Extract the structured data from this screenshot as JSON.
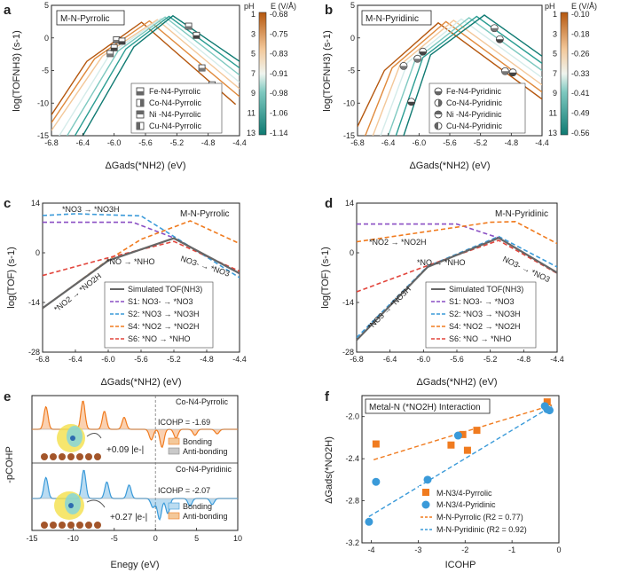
{
  "panels": {
    "a": {
      "letter": "a",
      "box_title": "M-N-Pyrrolic",
      "xlabel": "ΔGads(*NH2) (eV)",
      "ylabel": "log(TOFNH3) (s-1)",
      "xticks": [
        "-6.8",
        "-6.4",
        "-6.0",
        "-5.6",
        "-5.2",
        "-4.8",
        "-4.4"
      ],
      "yticks": [
        "5",
        "0",
        "-5",
        "-10",
        "-15"
      ],
      "legend": [
        "Fe-N4-Pyrrolic",
        "Co-N4-Pyrrolic",
        "Ni -N4-Pyrrolic",
        "Cu-N4-Pyrrolic"
      ],
      "colorbar": {
        "title_left": "pH",
        "title_right": "E (V/Å)",
        "ph_ticks": [
          "1",
          "3",
          "5",
          "7",
          "9",
          "11",
          "13"
        ],
        "e_ticks": [
          "-0.68",
          "-0.75",
          "-0.83",
          "-0.91",
          "-0.98",
          "-1.06",
          "-1.14"
        ]
      }
    },
    "b": {
      "letter": "b",
      "box_title": "M-N-Pyridinic",
      "xlabel": "ΔGads(*NH2) (eV)",
      "ylabel": "log(TOFNH3) (s-1)",
      "xticks": [
        "-6.8",
        "-6.4",
        "-6.0",
        "-5.6",
        "-5.2",
        "-4.8",
        "-4.4"
      ],
      "yticks": [
        "5",
        "0",
        "-5",
        "-10",
        "-15"
      ],
      "legend": [
        "Fe-N4-Pyridinic",
        "Co-N4-Pyridinic",
        "Ni -N4-Pyridinic",
        "Cu-N4-Pyridinic"
      ],
      "colorbar": {
        "title_left": "pH",
        "title_right": "E (V/Å)",
        "ph_ticks": [
          "1",
          "3",
          "5",
          "7",
          "9",
          "11",
          "13"
        ],
        "e_ticks": [
          "-0.10",
          "-0.18",
          "-0.26",
          "-0.33",
          "-0.41",
          "-0.49",
          "-0.56"
        ]
      }
    },
    "c": {
      "letter": "c",
      "box_title": "M-N-Pyrrolic",
      "xlabel": "ΔGads(*NH2) (eV)",
      "ylabel": "log(TOF) (s-1)",
      "xticks": [
        "-6.8",
        "-6.4",
        "-6.0",
        "-5.6",
        "-5.2",
        "-4.8",
        "-4.4"
      ],
      "yticks": [
        "14",
        "0",
        "-14",
        "-28"
      ],
      "annotations": [
        "*NO3 → *NO3H",
        "*NO → *NHO",
        "NO3- → *NO3",
        "*NO2 → *NO2H"
      ],
      "legend": [
        "Simulated TOF(NH3)",
        "S1: NO3- → *NO3",
        "S2: *NO3 → *NO3H",
        "S4: *NO2 → *NO2H",
        "S6: *NO → *NHO"
      ]
    },
    "d": {
      "letter": "d",
      "box_title": "M-N-Pyridinic",
      "xlabel": "ΔGads(*NH2) (eV)",
      "ylabel": "log(TOF) (s-1)",
      "xticks": [
        "-6.8",
        "-6.4",
        "-6.0",
        "-5.6",
        "-5.2",
        "-4.8",
        "-4.4"
      ],
      "yticks": [
        "14",
        "0",
        "-14",
        "-28"
      ],
      "annotations": [
        "*NO2 → *NO2H",
        "*NO → *NHO",
        "NO3- → *NO3",
        "*NO3 → *NO3H"
      ],
      "legend": [
        "Simulated TOF(NH3)",
        "S1: NO3- → *NO3",
        "S2: *NO3 → *NO3H",
        "S4: *NO2 → *NO2H",
        "S6: *NO → *NHO"
      ]
    },
    "e": {
      "letter": "e",
      "xlabel": "Enegy (eV)",
      "ylabel": "-pCOHP",
      "xticks": [
        "-15",
        "-10",
        "-5",
        "0",
        "5",
        "10"
      ],
      "top": {
        "title": "Co-N4-Pyrrolic",
        "icohp": "ICOHP = -1.69",
        "charge": "+0.09 |e-|",
        "legend": [
          "Bonding",
          "Anti-bonding"
        ]
      },
      "bottom": {
        "title": "Co-N4-Pyridinic",
        "icohp": "ICOHP = -2.07",
        "charge": "+0.27 |e-|",
        "legend": [
          "Bonding",
          "Anti-bonding"
        ]
      }
    },
    "f": {
      "letter": "f",
      "box_title": "Metal-N (*NO2H) Interaction",
      "xlabel": "ICOHP",
      "ylabel": "ΔGads(*NO2H)",
      "xticks": [
        "-4",
        "-3",
        "-2",
        "-1",
        "0"
      ],
      "yticks": [
        "-2.0",
        "-2.4",
        "-2.8",
        "-3.2"
      ],
      "legend": [
        "M-N3/4-Pyrrolic",
        "M-N3/4-Pyridinic",
        "M-N-Pyrrolic (R2 = 0.77)",
        "M-N-Pyridinic (R2 = 0.92)"
      ]
    }
  },
  "colors": {
    "orange": "#f07b1f",
    "blue": "#3a9ad9",
    "purple": "#8a4fc4",
    "red": "#e2453c",
    "grey": "#666666",
    "pink": "#d9405c",
    "teal": "#0f7a72",
    "brown": "#b5570e"
  },
  "chart_data": [
    {
      "type": "line",
      "panel": "a",
      "xlim": [
        -6.8,
        -4.4
      ],
      "ylim": [
        -15,
        5
      ],
      "series": [
        {
          "name": "pH 1",
          "color": "#b5570e",
          "x": [
            -6.8,
            -6.35,
            -5.65,
            -4.45
          ],
          "y": [
            -11.8,
            -3.6,
            2.4,
            -10.2
          ]
        },
        {
          "name": "pH 3",
          "color": "#e08a3c",
          "x": [
            -6.8,
            -6.25,
            -5.55,
            -4.4
          ],
          "y": [
            -13.0,
            -3.2,
            2.6,
            -9.0
          ]
        },
        {
          "name": "pH 5",
          "color": "#f3c89a",
          "x": [
            -6.8,
            -6.15,
            -5.45,
            -4.4
          ],
          "y": [
            -14.2,
            -2.8,
            2.8,
            -7.8
          ]
        },
        {
          "name": "pH 7",
          "color": "#d5ecea",
          "x": [
            -6.7,
            -6.05,
            -5.4,
            -4.4
          ],
          "y": [
            -15.0,
            -2.4,
            3.0,
            -6.8
          ]
        },
        {
          "name": "pH 9",
          "color": "#7ec9c0",
          "x": [
            -6.6,
            -5.95,
            -5.35,
            -4.4
          ],
          "y": [
            -15.0,
            -2.0,
            3.2,
            -5.7
          ]
        },
        {
          "name": "pH 11",
          "color": "#2a9d92",
          "x": [
            -6.5,
            -5.85,
            -5.3,
            -4.4
          ],
          "y": [
            -15.0,
            -1.7,
            3.3,
            -4.6
          ]
        },
        {
          "name": "pH 13",
          "color": "#0f7a72",
          "x": [
            -6.4,
            -5.75,
            -5.25,
            -4.4
          ],
          "y": [
            -15.0,
            -1.4,
            3.4,
            -3.6
          ]
        }
      ],
      "markers": [
        {
          "x": -6.05,
          "y": -2.4
        },
        {
          "x": -6.0,
          "y": -1.5
        },
        {
          "x": -5.97,
          "y": -0.3
        },
        {
          "x": -5.9,
          "y": -0.5
        },
        {
          "x": -5.05,
          "y": 1.8
        },
        {
          "x": -4.95,
          "y": 0.4
        },
        {
          "x": -4.88,
          "y": -4.6
        },
        {
          "x": -4.75,
          "y": -7.2
        }
      ]
    },
    {
      "type": "line",
      "panel": "b",
      "xlim": [
        -6.8,
        -4.4
      ],
      "ylim": [
        -15,
        5
      ],
      "series": [
        {
          "name": "pH 1",
          "color": "#b5570e",
          "x": [
            -6.8,
            -6.45,
            -5.75,
            -4.4
          ],
          "y": [
            -13.6,
            -5.0,
            2.3,
            -9.4
          ]
        },
        {
          "name": "pH 3",
          "color": "#e08a3c",
          "x": [
            -6.7,
            -6.35,
            -5.65,
            -4.4
          ],
          "y": [
            -15.0,
            -4.6,
            2.5,
            -8.3
          ]
        },
        {
          "name": "pH 5",
          "color": "#f3c89a",
          "x": [
            -6.6,
            -6.25,
            -5.55,
            -4.4
          ],
          "y": [
            -15.0,
            -4.2,
            2.7,
            -7.2
          ]
        },
        {
          "name": "pH 7",
          "color": "#d5ecea",
          "x": [
            -6.5,
            -6.15,
            -5.45,
            -4.4
          ],
          "y": [
            -15.0,
            -3.8,
            2.9,
            -6.1
          ]
        },
        {
          "name": "pH 9",
          "color": "#7ec9c0",
          "x": [
            -6.4,
            -6.05,
            -5.35,
            -4.4
          ],
          "y": [
            -15.0,
            -3.4,
            3.1,
            -5.0
          ]
        },
        {
          "name": "pH 11",
          "color": "#2a9d92",
          "x": [
            -6.3,
            -5.95,
            -5.25,
            -4.4
          ],
          "y": [
            -15.0,
            -3.0,
            3.3,
            -3.9
          ]
        },
        {
          "name": "pH 13",
          "color": "#0f7a72",
          "x": [
            -6.2,
            -5.85,
            -5.15,
            -4.4
          ],
          "y": [
            -15.0,
            -2.6,
            3.5,
            -2.8
          ]
        }
      ],
      "markers": [
        {
          "x": -6.2,
          "y": -4.3
        },
        {
          "x": -6.1,
          "y": -9.8
        },
        {
          "x": -6.02,
          "y": -3.2
        },
        {
          "x": -5.95,
          "y": -2.1
        },
        {
          "x": -5.02,
          "y": 1.5
        },
        {
          "x": -4.95,
          "y": -0.2
        },
        {
          "x": -4.88,
          "y": -5.1
        },
        {
          "x": -4.78,
          "y": -5.3
        }
      ]
    },
    {
      "type": "line",
      "panel": "c",
      "xlim": [
        -6.8,
        -4.4
      ],
      "ylim": [
        -28,
        14
      ],
      "series": [
        {
          "name": "Simulated TOF(NH3)",
          "color": "#666666",
          "dash": false,
          "x": [
            -6.8,
            -6.0,
            -5.2,
            -4.4
          ],
          "y": [
            -15.6,
            -2.2,
            4.1,
            -5.8
          ]
        },
        {
          "name": "S1: NO3- → *NO3",
          "color": "#8a4fc4",
          "dash": true,
          "x": [
            -6.8,
            -5.7,
            -5.2,
            -4.4
          ],
          "y": [
            8.6,
            8.6,
            4.2,
            -5.9
          ]
        },
        {
          "name": "S2: *NO3 → *NO3H",
          "color": "#3a9ad9",
          "dash": true,
          "x": [
            -6.8,
            -6.4,
            -5.6,
            -4.4
          ],
          "y": [
            10.5,
            11.0,
            10.4,
            -7.0
          ]
        },
        {
          "name": "S4: *NO2 → *NO2H",
          "color": "#f07b1f",
          "dash": true,
          "x": [
            -6.8,
            -6.0,
            -5.6,
            -5.0,
            -4.4
          ],
          "y": [
            -15.6,
            -2.0,
            3.8,
            9.0,
            2.6
          ]
        },
        {
          "name": "S6: *NO → *NHO",
          "color": "#e2453c",
          "dash": true,
          "x": [
            -6.8,
            -6.0,
            -5.2,
            -4.4
          ],
          "y": [
            -6.4,
            -1.4,
            3.2,
            -5.2
          ]
        }
      ]
    },
    {
      "type": "line",
      "panel": "d",
      "xlim": [
        -6.8,
        -4.4
      ],
      "ylim": [
        -28,
        14
      ],
      "series": [
        {
          "name": "Simulated TOF(NH3)",
          "color": "#666666",
          "dash": false,
          "x": [
            -6.8,
            -5.95,
            -5.1,
            -4.4
          ],
          "y": [
            -24.6,
            -4.0,
            4.2,
            -5.6
          ]
        },
        {
          "name": "S1: NO3- → *NO3",
          "color": "#8a4fc4",
          "dash": true,
          "x": [
            -6.8,
            -5.6,
            -5.1,
            -4.4
          ],
          "y": [
            8.1,
            8.1,
            4.2,
            -5.6
          ]
        },
        {
          "name": "S2: *NO3 → *NO3H",
          "color": "#3a9ad9",
          "dash": true,
          "x": [
            -6.8,
            -5.95,
            -5.1,
            -4.4
          ],
          "y": [
            -23.9,
            -3.8,
            4.6,
            -4.0
          ]
        },
        {
          "name": "S4: *NO2 → *NO2H",
          "color": "#f07b1f",
          "dash": true,
          "x": [
            -6.8,
            -5.2,
            -4.9,
            -4.4
          ],
          "y": [
            3.1,
            8.6,
            8.8,
            2.6
          ]
        },
        {
          "name": "S6: *NO → *NHO",
          "color": "#e2453c",
          "dash": true,
          "x": [
            -6.8,
            -5.95,
            -5.1,
            -4.4
          ],
          "y": [
            -11.0,
            -3.6,
            3.5,
            -5.8
          ]
        }
      ]
    },
    {
      "type": "area",
      "panel": "e",
      "xlim": [
        -15,
        10
      ],
      "series": [
        {
          "name": "Co-N4-Pyrrolic",
          "color": "#f07b1f",
          "peaks": [
            {
              "x": -13.3,
              "h": 0.75
            },
            {
              "x": -8.8,
              "h": 0.95
            },
            {
              "x": -6.2,
              "h": 0.6
            },
            {
              "x": -3.8,
              "h": 0.4
            },
            {
              "x": -0.5,
              "h": -0.35
            },
            {
              "x": 0.8,
              "h": -0.6
            },
            {
              "x": 2.5,
              "h": -0.3
            },
            {
              "x": 4.8,
              "h": -0.2
            },
            {
              "x": 7.5,
              "h": -0.15
            }
          ]
        },
        {
          "name": "Co-N4-Pyridinic",
          "color": "#3a9ad9",
          "peaks": [
            {
              "x": -13.3,
              "h": 0.7
            },
            {
              "x": -8.7,
              "h": 0.95
            },
            {
              "x": -5.9,
              "h": 0.55
            },
            {
              "x": -3.2,
              "h": 0.45
            },
            {
              "x": -0.3,
              "h": -0.3
            },
            {
              "x": 0.5,
              "h": -0.7
            },
            {
              "x": 1.5,
              "h": -0.5
            },
            {
              "x": 4.2,
              "h": -0.25
            },
            {
              "x": 6.9,
              "h": -0.2
            }
          ]
        }
      ]
    },
    {
      "type": "scatter",
      "panel": "f",
      "xlim": [
        -4.2,
        0
      ],
      "ylim": [
        -3.2,
        -1.8
      ],
      "series": [
        {
          "name": "M-N3/4-Pyrrolic",
          "color": "#f07b1f",
          "marker": "square",
          "x": [
            -3.9,
            -2.3,
            -2.05,
            -1.95,
            -1.75,
            -0.25
          ],
          "y": [
            -2.26,
            -2.27,
            -2.17,
            -2.32,
            -2.13,
            -1.86
          ]
        },
        {
          "name": "M-N3/4-Pyridinic",
          "color": "#3a9ad9",
          "marker": "circle",
          "x": [
            -4.05,
            -3.9,
            -2.8,
            -2.15,
            -0.3,
            -0.25,
            -0.2
          ],
          "y": [
            -3.0,
            -2.62,
            -2.6,
            -2.18,
            -1.9,
            -1.93,
            -1.94
          ]
        }
      ],
      "fits": [
        {
          "name": "M-N-Pyrrolic (R2 = 0.77)",
          "color": "#f07b1f",
          "x": [
            -3.95,
            -0.15
          ],
          "y": [
            -2.41,
            -1.89
          ]
        },
        {
          "name": "M-N-Pyridinic (R2 = 0.92)",
          "color": "#3a9ad9",
          "x": [
            -4.05,
            -0.15
          ],
          "y": [
            -2.95,
            -1.9
          ]
        }
      ]
    }
  ]
}
